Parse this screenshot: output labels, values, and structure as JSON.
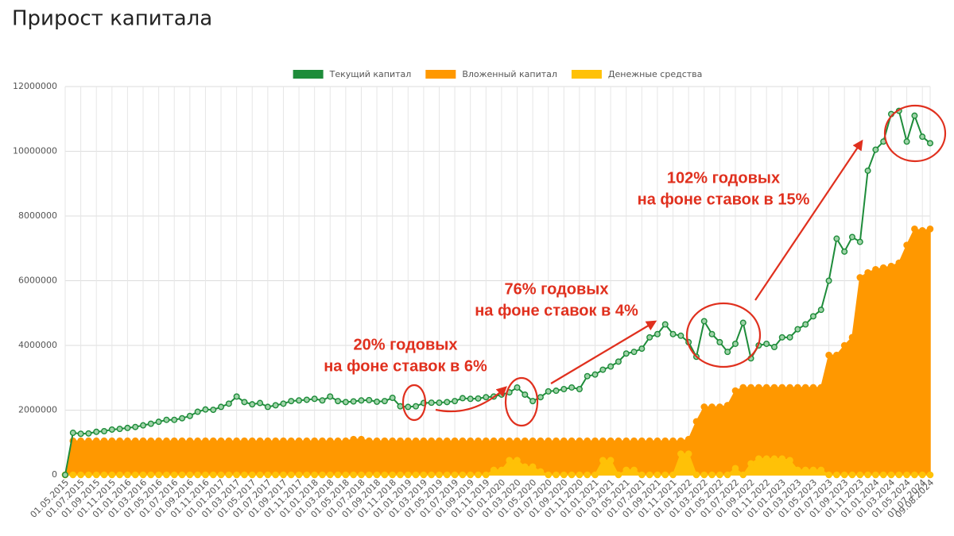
{
  "chart_data": {
    "type": "line-area",
    "title": "Прирост капитала",
    "categories": [
      "01.05.2015",
      null,
      "01.07.2015",
      null,
      "01.09.2015",
      null,
      "01.11.2015",
      null,
      "01.01.2016",
      null,
      "01.03.2016",
      null,
      "01.05.2016",
      null,
      "01.07.2016",
      null,
      "01.09.2016",
      null,
      "01.11.2016",
      null,
      "01.01.2017",
      null,
      "01.03.2017",
      null,
      "01.05.2017",
      null,
      "01.07.2017",
      null,
      "01.09.2017",
      null,
      "01.11.2017",
      null,
      "01.01.2018",
      null,
      "01.03.2018",
      null,
      "01.05.2018",
      null,
      "01.07.2018",
      null,
      "01.09.2018",
      null,
      "01.11.2018",
      null,
      "01.01.2019",
      null,
      "01.03.2019",
      null,
      "01.05.2019",
      null,
      "01.07.2019",
      null,
      "01.09.2019",
      null,
      "01.11.2019",
      null,
      "01.01.2020",
      null,
      "01.03.2020",
      null,
      "01.05.2020",
      null,
      "01.07.2020",
      null,
      "01.09.2020",
      null,
      "01.11.2020",
      null,
      "01.01.2021",
      null,
      "01.03.2021",
      null,
      "01.05.2021",
      null,
      "01.07.2021",
      null,
      "01.09.2021",
      null,
      "01.11.2021",
      null,
      "01.01.2022",
      null,
      "01.03.2022",
      null,
      "01.05.2022",
      null,
      "01.07.2022",
      null,
      "01.09.2022",
      null,
      "01.11.2022",
      null,
      "01.01.2023",
      null,
      "01.03.2023",
      null,
      "01.05.2023",
      null,
      "01.07.2023",
      null,
      "01.09.2023",
      null,
      "01.11.2023",
      null,
      "01.01.2024",
      null,
      "01.03.2024",
      null,
      "01.05.2024",
      null,
      "01.07.2024",
      "09.08.2024"
    ],
    "series": [
      {
        "name": "Текущий капитал",
        "color": "#1e8c3a",
        "kind": "line",
        "values": [
          0,
          1300000,
          1270000,
          1280000,
          1330000,
          1350000,
          1400000,
          1420000,
          1450000,
          1480000,
          1530000,
          1580000,
          1640000,
          1700000,
          1700000,
          1750000,
          1820000,
          1950000,
          2020000,
          2010000,
          2100000,
          2200000,
          2420000,
          2250000,
          2180000,
          2220000,
          2100000,
          2150000,
          2200000,
          2280000,
          2300000,
          2320000,
          2350000,
          2300000,
          2420000,
          2280000,
          2250000,
          2270000,
          2300000,
          2310000,
          2260000,
          2280000,
          2380000,
          2120000,
          2100000,
          2120000,
          2220000,
          2230000,
          2230000,
          2250000,
          2280000,
          2370000,
          2350000,
          2360000,
          2400000,
          2420000,
          2480000,
          2550000,
          2700000,
          2480000,
          2280000,
          2400000,
          2580000,
          2600000,
          2650000,
          2700000,
          2650000,
          3050000,
          3100000,
          3250000,
          3350000,
          3500000,
          3750000,
          3800000,
          3900000,
          4250000,
          4350000,
          4650000,
          4350000,
          4300000,
          4100000,
          3650000,
          4750000,
          4350000,
          4100000,
          3800000,
          4050000,
          4700000,
          3600000,
          4000000,
          4050000,
          3950000,
          4250000,
          4250000,
          4500000,
          4650000,
          4900000,
          5100000,
          6000000,
          7300000,
          6900000,
          7350000,
          7200000,
          9400000,
          10050000,
          10300000,
          11150000,
          11250000,
          10300000,
          11100000,
          10450000,
          10250000
        ]
      },
      {
        "name": "Вложенный капитал",
        "color": "#ff9800",
        "kind": "area",
        "values": [
          0,
          1050000,
          1050000,
          1050000,
          1050000,
          1050000,
          1050000,
          1050000,
          1050000,
          1050000,
          1050000,
          1050000,
          1050000,
          1050000,
          1050000,
          1050000,
          1050000,
          1050000,
          1050000,
          1050000,
          1050000,
          1050000,
          1050000,
          1050000,
          1050000,
          1050000,
          1050000,
          1050000,
          1050000,
          1050000,
          1050000,
          1050000,
          1050000,
          1050000,
          1050000,
          1050000,
          1050000,
          1100000,
          1100000,
          1050000,
          1050000,
          1050000,
          1050000,
          1050000,
          1050000,
          1050000,
          1050000,
          1050000,
          1050000,
          1050000,
          1050000,
          1050000,
          1050000,
          1050000,
          1050000,
          1050000,
          1050000,
          1050000,
          1050000,
          1050000,
          1050000,
          1050000,
          1050000,
          1050000,
          1050000,
          1050000,
          1050000,
          1050000,
          1050000,
          1050000,
          1050000,
          1050000,
          1050000,
          1050000,
          1050000,
          1050000,
          1050000,
          1050000,
          1050000,
          1050000,
          1100000,
          1650000,
          2100000,
          2100000,
          2100000,
          2150000,
          2600000,
          2700000,
          2700000,
          2700000,
          2700000,
          2700000,
          2700000,
          2700000,
          2700000,
          2700000,
          2700000,
          2700000,
          3700000,
          3700000,
          4000000,
          4250000,
          6100000,
          6250000,
          6350000,
          6400000,
          6450000,
          6550000,
          7100000,
          7600000,
          7550000,
          7600000
        ]
      },
      {
        "name": "Денежные средства",
        "color": "#ffc107",
        "kind": "area",
        "values": [
          0,
          0,
          0,
          0,
          0,
          0,
          0,
          0,
          0,
          0,
          0,
          0,
          0,
          0,
          0,
          0,
          0,
          0,
          0,
          0,
          0,
          0,
          0,
          0,
          0,
          0,
          0,
          0,
          0,
          0,
          0,
          0,
          0,
          0,
          0,
          0,
          0,
          0,
          0,
          0,
          0,
          0,
          0,
          0,
          0,
          0,
          0,
          0,
          0,
          0,
          0,
          0,
          0,
          0,
          0,
          150000,
          150000,
          450000,
          450000,
          250000,
          250000,
          100000,
          0,
          0,
          0,
          0,
          0,
          0,
          0,
          450000,
          450000,
          0,
          150000,
          150000,
          0,
          0,
          0,
          0,
          0,
          650000,
          650000,
          0,
          0,
          0,
          0,
          0,
          200000,
          0,
          350000,
          500000,
          500000,
          500000,
          500000,
          450000,
          150000,
          150000,
          150000,
          150000,
          0,
          0,
          0,
          0,
          0,
          0,
          0,
          0,
          0,
          0,
          0,
          0,
          0,
          0
        ]
      }
    ],
    "ylim": [
      0,
      12000000
    ],
    "yticks": [
      0,
      2000000,
      4000000,
      6000000,
      8000000,
      10000000,
      12000000
    ],
    "grid": true,
    "legend": "top",
    "annotations": [
      {
        "lines": [
          "20% годовых",
          "на фоне ставок в 6%"
        ]
      },
      {
        "lines": [
          "76% годовых",
          "на фоне ставок в 4%"
        ]
      },
      {
        "lines": [
          "102% годовых",
          "на фоне ставок в 15%"
        ]
      }
    ]
  }
}
